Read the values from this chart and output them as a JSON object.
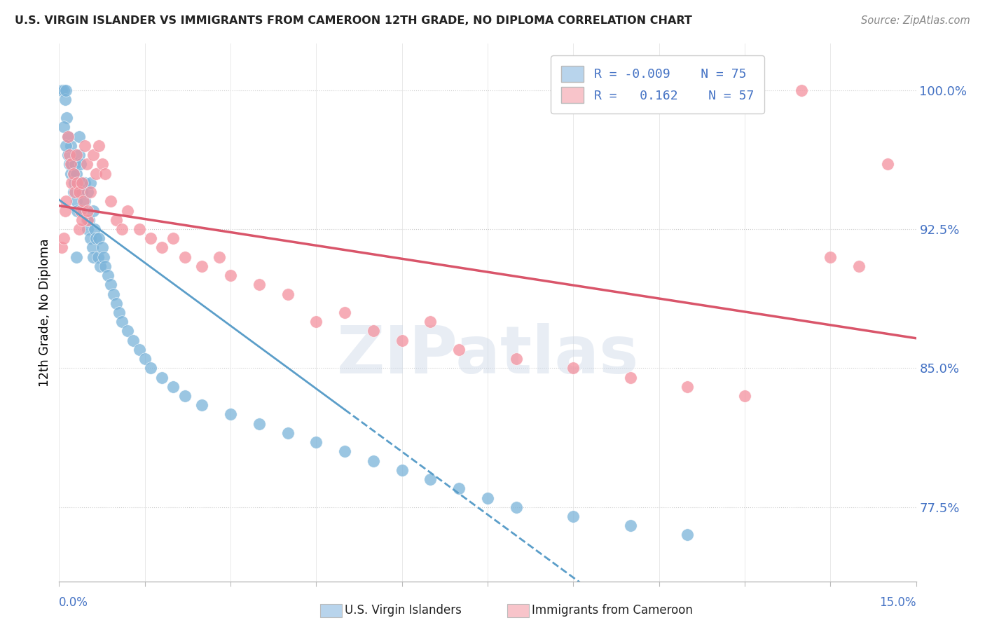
{
  "title": "U.S. VIRGIN ISLANDER VS IMMIGRANTS FROM CAMEROON 12TH GRADE, NO DIPLOMA CORRELATION CHART",
  "source": "Source: ZipAtlas.com",
  "ylabel": "12th Grade, No Diploma",
  "xmin": 0.0,
  "xmax": 15.0,
  "ymin": 73.5,
  "ymax": 102.5,
  "yticks": [
    77.5,
    85.0,
    92.5,
    100.0
  ],
  "blue_R": -0.009,
  "blue_N": 75,
  "pink_R": 0.162,
  "pink_N": 57,
  "blue_color": "#7ab3d9",
  "pink_color": "#f4919e",
  "blue_legend_color": "#b8d4ec",
  "pink_legend_color": "#f8c4ca",
  "trend_blue_color": "#5b9ec9",
  "trend_pink_color": "#d9556a",
  "blue_x": [
    0.05,
    0.08,
    0.1,
    0.12,
    0.13,
    0.15,
    0.15,
    0.18,
    0.2,
    0.2,
    0.22,
    0.25,
    0.25,
    0.27,
    0.28,
    0.3,
    0.3,
    0.32,
    0.35,
    0.35,
    0.38,
    0.4,
    0.4,
    0.42,
    0.45,
    0.45,
    0.48,
    0.5,
    0.5,
    0.52,
    0.55,
    0.55,
    0.58,
    0.6,
    0.6,
    0.62,
    0.65,
    0.68,
    0.7,
    0.72,
    0.75,
    0.78,
    0.8,
    0.85,
    0.9,
    0.95,
    1.0,
    1.05,
    1.1,
    1.2,
    1.3,
    1.4,
    1.5,
    1.6,
    1.8,
    2.0,
    2.2,
    2.5,
    3.0,
    3.5,
    4.0,
    4.5,
    5.0,
    5.5,
    6.0,
    6.5,
    7.0,
    7.5,
    8.0,
    9.0,
    10.0,
    11.0,
    0.08,
    0.12,
    0.3
  ],
  "blue_y": [
    100.0,
    100.0,
    99.5,
    100.0,
    98.5,
    97.5,
    96.5,
    96.0,
    97.0,
    95.5,
    96.0,
    95.5,
    94.5,
    95.0,
    96.0,
    95.5,
    94.0,
    93.5,
    97.5,
    96.5,
    96.0,
    95.0,
    94.5,
    93.5,
    95.0,
    94.0,
    93.0,
    94.5,
    92.5,
    93.0,
    95.0,
    92.0,
    91.5,
    93.5,
    91.0,
    92.5,
    92.0,
    91.0,
    92.0,
    90.5,
    91.5,
    91.0,
    90.5,
    90.0,
    89.5,
    89.0,
    88.5,
    88.0,
    87.5,
    87.0,
    86.5,
    86.0,
    85.5,
    85.0,
    84.5,
    84.0,
    83.5,
    83.0,
    82.5,
    82.0,
    81.5,
    81.0,
    80.5,
    80.0,
    79.5,
    79.0,
    78.5,
    78.0,
    77.5,
    77.0,
    76.5,
    76.0,
    98.0,
    97.0,
    91.0
  ],
  "pink_x": [
    0.05,
    0.08,
    0.1,
    0.12,
    0.15,
    0.18,
    0.2,
    0.22,
    0.25,
    0.28,
    0.3,
    0.32,
    0.35,
    0.38,
    0.4,
    0.42,
    0.45,
    0.48,
    0.5,
    0.55,
    0.6,
    0.65,
    0.7,
    0.75,
    0.8,
    0.9,
    1.0,
    1.1,
    1.2,
    1.4,
    1.6,
    1.8,
    2.0,
    2.2,
    2.5,
    2.8,
    3.0,
    3.5,
    4.0,
    4.5,
    5.0,
    5.5,
    6.0,
    6.5,
    7.0,
    8.0,
    9.0,
    10.0,
    11.0,
    12.0,
    13.0,
    13.5,
    14.0,
    14.5,
    0.35,
    0.4,
    0.5
  ],
  "pink_y": [
    91.5,
    92.0,
    93.5,
    94.0,
    97.5,
    96.5,
    96.0,
    95.0,
    95.5,
    94.5,
    96.5,
    95.0,
    94.5,
    93.5,
    95.0,
    94.0,
    97.0,
    96.0,
    93.0,
    94.5,
    96.5,
    95.5,
    97.0,
    96.0,
    95.5,
    94.0,
    93.0,
    92.5,
    93.5,
    92.5,
    92.0,
    91.5,
    92.0,
    91.0,
    90.5,
    91.0,
    90.0,
    89.5,
    89.0,
    87.5,
    88.0,
    87.0,
    86.5,
    87.5,
    86.0,
    85.5,
    85.0,
    84.5,
    84.0,
    83.5,
    100.0,
    91.0,
    90.5,
    96.0,
    92.5,
    93.0,
    93.5
  ]
}
